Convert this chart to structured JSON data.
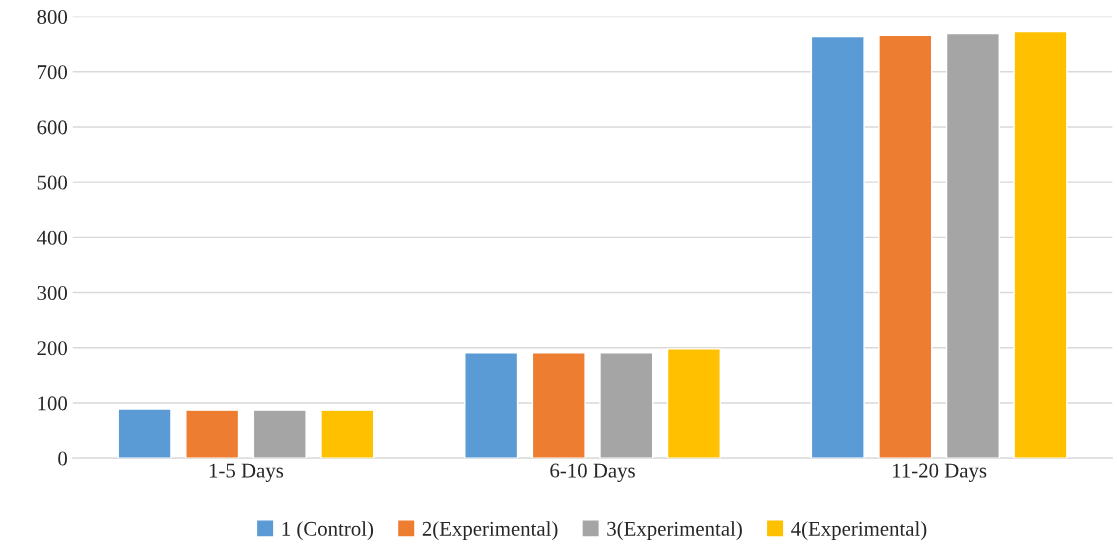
{
  "chart_data": {
    "type": "bar",
    "categories": [
      "1-5 Days",
      "6-10 Days",
      "11-20 Days"
    ],
    "series": [
      {
        "name": "1 (Control)",
        "color": "#5b9bd5",
        "values": [
          89,
          191,
          764
        ]
      },
      {
        "name": "2(Experimental)",
        "color": "#ed7d31",
        "values": [
          87,
          191,
          766
        ]
      },
      {
        "name": "3(Experimental)",
        "color": "#a5a5a5",
        "values": [
          87,
          191,
          769
        ]
      },
      {
        "name": "4(Experimental)",
        "color": "#ffc000",
        "values": [
          87,
          198,
          773
        ]
      }
    ],
    "ylim": [
      0,
      800
    ],
    "yticks": [
      0,
      100,
      200,
      300,
      400,
      500,
      600,
      700,
      800
    ],
    "grid": "y",
    "legend": "bottom"
  }
}
